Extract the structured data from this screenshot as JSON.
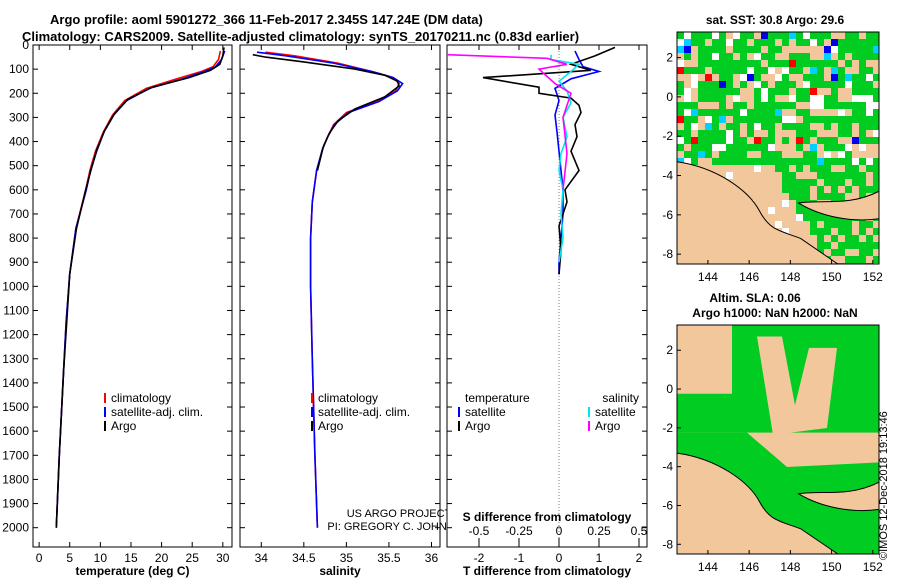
{
  "title": {
    "line1": "Argo profile: aoml 5901272_366 11-Feb-2017 2.345S 147.24E (DM data)",
    "line2": "Climatology: CARS2009. Satellite-adjusted climatology: synTS_20170211.nc (0.83d earlier)"
  },
  "copyright": "©IMOS 12-Dec-2018 19:13:46",
  "chart_data": [
    {
      "id": "temperature",
      "type": "line",
      "xlabel": "temperature (deg C)",
      "ylabel": "",
      "xlim": [
        -1,
        31.5
      ],
      "ylim": [
        2080,
        0
      ],
      "xticks": [
        0,
        5,
        10,
        15,
        20,
        25,
        30
      ],
      "yticks": [
        0,
        100,
        200,
        300,
        400,
        500,
        600,
        700,
        800,
        900,
        1000,
        1100,
        1200,
        1300,
        1400,
        1500,
        1600,
        1700,
        1800,
        1900,
        2000
      ],
      "legend": [
        {
          "label": "climatology",
          "color": "#ff0000"
        },
        {
          "label": "satellite-adj. clim.",
          "color": "#0000ff"
        },
        {
          "label": "Argo",
          "color": "#000000"
        }
      ],
      "series": [
        {
          "name": "climatology",
          "color": "#ff0000",
          "x": [
            29.6,
            29.3,
            28.4,
            26.5,
            22.5,
            17.5,
            14.0,
            12.0,
            10.5,
            9.2,
            8.3,
            7.6,
            6.0,
            5.0,
            4.4,
            4.0,
            3.3,
            2.8
          ],
          "y": [
            25,
            60,
            90,
            110,
            140,
            180,
            230,
            290,
            360,
            440,
            520,
            600,
            760,
            950,
            1150,
            1350,
            1700,
            2000
          ]
        },
        {
          "name": "satellite-adj. clim.",
          "color": "#0000ff",
          "x": [
            30.3,
            29.8,
            28.8,
            27.0,
            23.5,
            18.0,
            14.3,
            12.2,
            10.6,
            9.4,
            8.4,
            7.7,
            6.0,
            5.0,
            4.4,
            4.0,
            3.3,
            2.8
          ],
          "y": [
            25,
            60,
            90,
            110,
            140,
            180,
            230,
            290,
            360,
            440,
            520,
            600,
            760,
            950,
            1150,
            1350,
            1700,
            2000
          ]
        },
        {
          "name": "Argo",
          "color": "#000000",
          "x": [
            30.2,
            30.0,
            29.5,
            28.0,
            24.5,
            18.5,
            14.5,
            12.3,
            10.7,
            9.4,
            8.5,
            7.6,
            6.1,
            5.0,
            4.5,
            4.0,
            3.3,
            2.8
          ],
          "y": [
            10,
            45,
            80,
            105,
            135,
            175,
            225,
            285,
            355,
            435,
            515,
            600,
            760,
            950,
            1150,
            1350,
            1700,
            2000
          ]
        }
      ]
    },
    {
      "id": "salinity",
      "type": "line",
      "xlabel": "salinity",
      "ylabel": "",
      "xlim": [
        33.75,
        36.1
      ],
      "ylim": [
        2080,
        0
      ],
      "xticks": [
        34,
        34.5,
        35,
        35.5,
        36
      ],
      "xticklabels": [
        "34",
        "34.5",
        "35",
        "35.5",
        "36"
      ],
      "annotations": [
        "US ARGO PROJECT",
        "PI: GREGORY C. JOHNSON"
      ],
      "legend": [
        {
          "label": "climatology",
          "color": "#ff0000"
        },
        {
          "label": "satellite-adj. clim.",
          "color": "#0000ff"
        },
        {
          "label": "Argo",
          "color": "#000000"
        }
      ],
      "series": [
        {
          "name": "climatology",
          "color": "#ff0000",
          "x": [
            34.05,
            34.4,
            34.9,
            35.3,
            35.55,
            35.62,
            35.58,
            35.35,
            35.0,
            34.85,
            34.78,
            34.72,
            34.65,
            34.6,
            34.58,
            34.58,
            34.6,
            34.63,
            34.66
          ],
          "y": [
            30,
            45,
            75,
            110,
            135,
            160,
            190,
            235,
            280,
            330,
            380,
            430,
            520,
            650,
            800,
            1000,
            1300,
            1700,
            2000
          ]
        },
        {
          "name": "satellite-adj. clim.",
          "color": "#0000ff",
          "x": [
            33.95,
            34.3,
            34.85,
            35.3,
            35.55,
            35.66,
            35.6,
            35.38,
            35.02,
            34.86,
            34.78,
            34.72,
            34.65,
            34.6,
            34.58,
            34.58,
            34.6,
            34.63,
            34.66
          ],
          "y": [
            30,
            45,
            75,
            110,
            135,
            160,
            190,
            235,
            280,
            330,
            380,
            430,
            520,
            650,
            800,
            1000,
            1300,
            1700,
            2000
          ]
        },
        {
          "name": "Argo",
          "color": "#000000",
          "x": [
            33.9,
            34.05,
            34.5,
            35.1,
            35.45,
            35.6,
            35.62,
            35.45,
            35.1,
            34.9,
            34.8,
            34.73,
            34.66
          ],
          "y": [
            40,
            50,
            70,
            100,
            125,
            150,
            170,
            215,
            265,
            315,
            365,
            420,
            520
          ]
        }
      ]
    },
    {
      "id": "difference",
      "type": "line",
      "xlabel": "T difference from climatology",
      "x2label": "S difference from climatology",
      "xlim": [
        -2.8,
        2.2
      ],
      "ylim": [
        2080,
        0
      ],
      "xticks": [
        -2,
        -1,
        0,
        1,
        2
      ],
      "xticklabels": [
        "-2",
        "-1",
        "0",
        "1",
        "2"
      ],
      "x2ticks": [
        -0.5,
        -0.25,
        0,
        0.25,
        0.5
      ],
      "x2ticklabels": [
        "-0.5",
        "-0.25",
        "0",
        "0.25",
        "0.5"
      ],
      "legend_temperature": {
        "heading": "temperature",
        "entries": [
          {
            "label": "satellite",
            "color": "#0000ff"
          },
          {
            "label": "Argo",
            "color": "#000000"
          }
        ]
      },
      "legend_salinity": {
        "heading": "salinity",
        "entries": [
          {
            "label": "satellite",
            "color": "#00e5ee"
          },
          {
            "label": "Argo",
            "color": "#ff00ff"
          }
        ]
      },
      "series": [
        {
          "name": "temperature satellite",
          "color": "#0000ff",
          "x": [
            0.4,
            0.5,
            0.6,
            1.0,
            0.3,
            -0.1,
            0.0,
            -0.1,
            -0.05,
            0.0,
            0.05,
            0.1,
            0.1,
            0.05,
            0.0,
            0.0
          ],
          "y": [
            25,
            60,
            90,
            110,
            140,
            180,
            230,
            290,
            360,
            440,
            520,
            600,
            700,
            800,
            900,
            950
          ]
        },
        {
          "name": "temperature Argo",
          "color": "#000000",
          "x": [
            1.4,
            0.9,
            0.3,
            0.8,
            -1.9,
            -0.5,
            -0.5,
            0.3,
            0.5,
            0.55,
            0.4,
            0.45,
            0.3,
            0.5,
            0.15,
            0.2,
            0.0,
            0.05,
            0.0
          ],
          "y": [
            10,
            45,
            80,
            105,
            135,
            175,
            200,
            220,
            250,
            280,
            330,
            380,
            440,
            520,
            600,
            650,
            750,
            850,
            950
          ]
        },
        {
          "name": "salinity satellite",
          "color": "#00e5ee",
          "x": [
            -0.2,
            -0.2,
            0.5,
            0.3,
            0.0,
            0.2,
            0.3,
            0.1,
            0.2,
            0.05,
            0.0,
            0.1,
            0.05,
            0.1,
            0.0
          ],
          "y": [
            40,
            60,
            80,
            110,
            150,
            190,
            240,
            300,
            380,
            450,
            520,
            600,
            700,
            800,
            900
          ]
        },
        {
          "name": "salinity Argo",
          "color": "#ff00ff",
          "x": [
            -2.8,
            -0.3,
            0.2,
            -0.5,
            -0.1,
            0.3,
            0.1,
            0.2,
            0.1
          ],
          "y": [
            40,
            55,
            80,
            100,
            160,
            200,
            300,
            450,
            600
          ]
        }
      ]
    },
    {
      "id": "sst-map",
      "type": "heatmap",
      "title": "sat. SST: 30.8 Argo: 29.6",
      "xlim": [
        142.5,
        152.3
      ],
      "ylim": [
        -8.5,
        3.3
      ],
      "xticks": [
        144,
        146,
        148,
        150,
        152
      ],
      "xticklabels": [
        "144",
        "146",
        "148",
        "150",
        "152"
      ],
      "yticks": [
        2,
        0,
        -2,
        -4,
        -6,
        -8
      ],
      "yticklabels": [
        "2",
        "0",
        "-2",
        "-4",
        "-6",
        "-8"
      ],
      "palette": [
        "#00cc22",
        "#ffffff",
        "#ffffff",
        "#f2c79c",
        "#00cc22",
        "#ff0000",
        "#0000ee",
        "#00cfff"
      ]
    },
    {
      "id": "sla-map",
      "type": "heatmap",
      "title": "Altim. SLA: 0.06",
      "subtitle": "Argo h1000: NaN h2000: NaN",
      "xlim": [
        142.5,
        152.3
      ],
      "ylim": [
        -8.5,
        3.3
      ],
      "xticks": [
        144,
        146,
        148,
        150,
        152
      ],
      "xticklabels": [
        "144",
        "146",
        "148",
        "150",
        "152"
      ],
      "yticks": [
        2,
        0,
        -2,
        -4,
        -6,
        -8
      ],
      "yticklabels": [
        "2",
        "0",
        "-2",
        "-4",
        "-6",
        "-8"
      ],
      "palette": [
        "#00cc22",
        "#f2c79c"
      ]
    }
  ]
}
